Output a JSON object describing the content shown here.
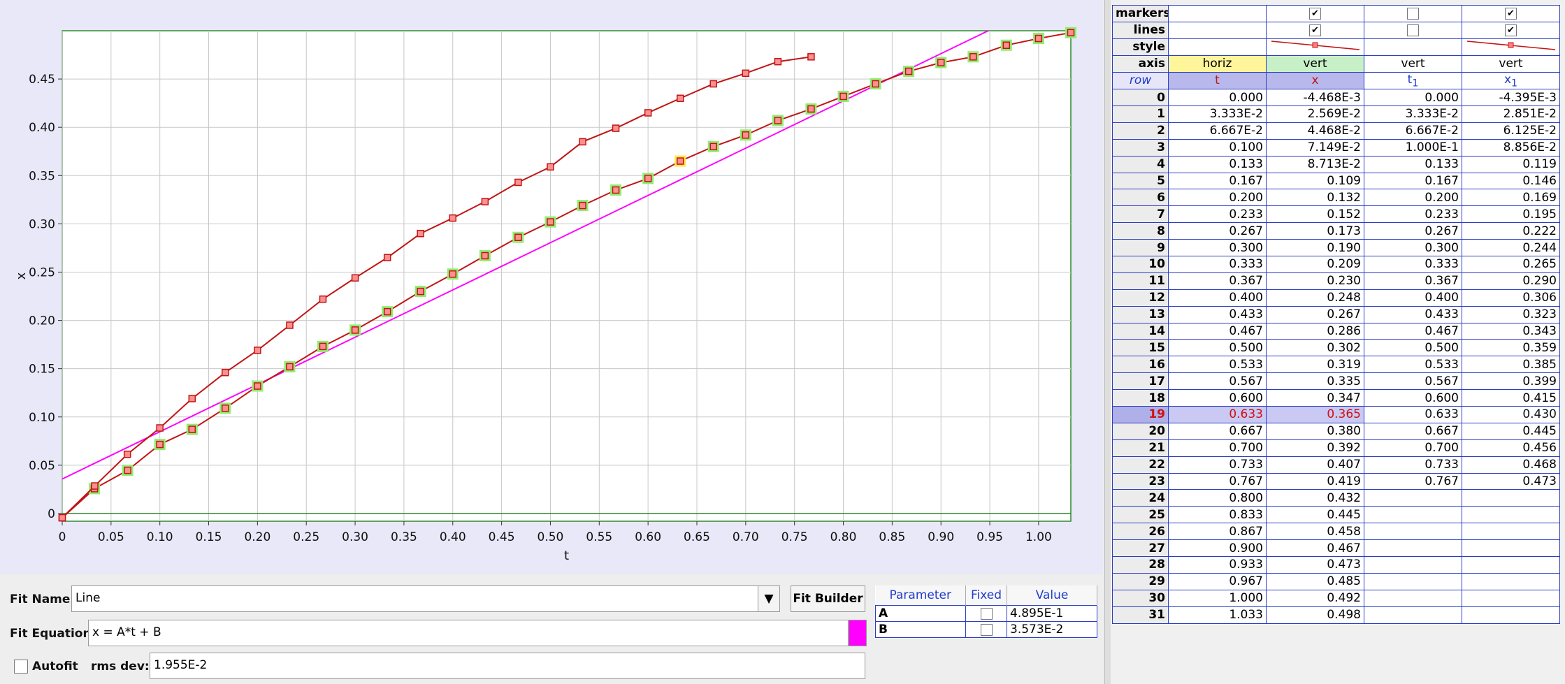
{
  "chart_data": {
    "type": "scatter",
    "xlabel": "t",
    "ylabel": "x",
    "xlim": [
      0,
      1.033
    ],
    "ylim": [
      -0.008,
      0.5
    ],
    "xticks": [
      "0",
      "0.05",
      "0.10",
      "0.15",
      "0.20",
      "0.25",
      "0.30",
      "0.35",
      "0.40",
      "0.45",
      "0.50",
      "0.55",
      "0.60",
      "0.65",
      "0.70",
      "0.75",
      "0.80",
      "0.85",
      "0.90",
      "0.95",
      "1.00"
    ],
    "yticks": [
      "0",
      "0.05",
      "0.10",
      "0.15",
      "0.20",
      "0.25",
      "0.30",
      "0.35",
      "0.40",
      "0.45"
    ],
    "grid": true,
    "series": [
      {
        "x": [
          0,
          0.033,
          0.067,
          0.1,
          0.133,
          0.167,
          0.2,
          0.233,
          0.267,
          0.3,
          0.333,
          0.367,
          0.4,
          0.433,
          0.467,
          0.5,
          0.533,
          0.567,
          0.6,
          0.633,
          0.667,
          0.7,
          0.733,
          0.767,
          0.8,
          0.833,
          0.867,
          0.9,
          0.933,
          0.967,
          1.0,
          1.033
        ],
        "values": [
          -0.0045,
          0.0257,
          0.0447,
          0.0715,
          0.0871,
          0.109,
          0.132,
          0.152,
          0.173,
          0.19,
          0.209,
          0.23,
          0.248,
          0.267,
          0.286,
          0.302,
          0.319,
          0.335,
          0.347,
          0.365,
          0.38,
          0.392,
          0.407,
          0.419,
          0.432,
          0.445,
          0.458,
          0.467,
          0.473,
          0.485,
          0.492,
          0.498
        ],
        "color": "#c01515",
        "highlight": "#90ee70"
      },
      {
        "x": [
          0,
          0.0333,
          0.0667,
          0.1,
          0.133,
          0.167,
          0.2,
          0.233,
          0.267,
          0.3,
          0.333,
          0.367,
          0.4,
          0.433,
          0.467,
          0.5,
          0.533,
          0.567,
          0.6,
          0.633,
          0.667,
          0.7,
          0.733,
          0.767
        ],
        "values": [
          -0.0044,
          0.0285,
          0.0613,
          0.0886,
          0.119,
          0.146,
          0.169,
          0.195,
          0.222,
          0.244,
          0.265,
          0.29,
          0.306,
          0.323,
          0.343,
          0.359,
          0.385,
          0.399,
          0.415,
          0.43,
          0.445,
          0.456,
          0.468,
          0.473
        ],
        "color": "#c01515"
      }
    ],
    "fit": {
      "slope": 0.4895,
      "intercept": 0.03573,
      "color": "#ff00ff"
    },
    "selected_index": 19,
    "selected_color": "#ffe84a"
  },
  "fit": {
    "name_label": "Fit Name:",
    "name_value": "Line",
    "builder_label": "Fit Builder",
    "equation_label": "Fit Equation:",
    "equation_value": "x = A*t + B",
    "swatch_color": "#ff00ff",
    "autofit_label": "Autofit",
    "rms_label": "rms dev:",
    "rms_value": "1.955E-2",
    "param_header": "Parameter",
    "fixed_header": "Fixed",
    "value_header": "Value",
    "params": [
      {
        "name": "A",
        "value": "4.895E-1"
      },
      {
        "name": "B",
        "value": "3.573E-2"
      }
    ]
  },
  "table": {
    "markers_label": "markers",
    "lines_label": "lines",
    "style_label": "style",
    "axis_label": "axis",
    "axis_values": [
      "horiz",
      "vert",
      "vert",
      "vert"
    ],
    "row_label": "row",
    "columns": [
      "t",
      "x",
      "t",
      "x"
    ],
    "subscript": "1",
    "rows": [
      [
        "0",
        "0.000",
        "-4.468E-3",
        "0.000",
        "-4.395E-3"
      ],
      [
        "1",
        "3.333E-2",
        "2.569E-2",
        "3.333E-2",
        "2.851E-2"
      ],
      [
        "2",
        "6.667E-2",
        "4.468E-2",
        "6.667E-2",
        "6.125E-2"
      ],
      [
        "3",
        "0.100",
        "7.149E-2",
        "1.000E-1",
        "8.856E-2"
      ],
      [
        "4",
        "0.133",
        "8.713E-2",
        "0.133",
        "0.119"
      ],
      [
        "5",
        "0.167",
        "0.109",
        "0.167",
        "0.146"
      ],
      [
        "6",
        "0.200",
        "0.132",
        "0.200",
        "0.169"
      ],
      [
        "7",
        "0.233",
        "0.152",
        "0.233",
        "0.195"
      ],
      [
        "8",
        "0.267",
        "0.173",
        "0.267",
        "0.222"
      ],
      [
        "9",
        "0.300",
        "0.190",
        "0.300",
        "0.244"
      ],
      [
        "10",
        "0.333",
        "0.209",
        "0.333",
        "0.265"
      ],
      [
        "11",
        "0.367",
        "0.230",
        "0.367",
        "0.290"
      ],
      [
        "12",
        "0.400",
        "0.248",
        "0.400",
        "0.306"
      ],
      [
        "13",
        "0.433",
        "0.267",
        "0.433",
        "0.323"
      ],
      [
        "14",
        "0.467",
        "0.286",
        "0.467",
        "0.343"
      ],
      [
        "15",
        "0.500",
        "0.302",
        "0.500",
        "0.359"
      ],
      [
        "16",
        "0.533",
        "0.319",
        "0.533",
        "0.385"
      ],
      [
        "17",
        "0.567",
        "0.335",
        "0.567",
        "0.399"
      ],
      [
        "18",
        "0.600",
        "0.347",
        "0.600",
        "0.415"
      ],
      [
        "19",
        "0.633",
        "0.365",
        "0.633",
        "0.430"
      ],
      [
        "20",
        "0.667",
        "0.380",
        "0.667",
        "0.445"
      ],
      [
        "21",
        "0.700",
        "0.392",
        "0.700",
        "0.456"
      ],
      [
        "22",
        "0.733",
        "0.407",
        "0.733",
        "0.468"
      ],
      [
        "23",
        "0.767",
        "0.419",
        "0.767",
        "0.473"
      ],
      [
        "24",
        "0.800",
        "0.432",
        "",
        ""
      ],
      [
        "25",
        "0.833",
        "0.445",
        "",
        ""
      ],
      [
        "26",
        "0.867",
        "0.458",
        "",
        ""
      ],
      [
        "27",
        "0.900",
        "0.467",
        "",
        ""
      ],
      [
        "28",
        "0.933",
        "0.473",
        "",
        ""
      ],
      [
        "29",
        "0.967",
        "0.485",
        "",
        ""
      ],
      [
        "30",
        "1.000",
        "0.492",
        "",
        ""
      ],
      [
        "31",
        "1.033",
        "0.498",
        "",
        ""
      ]
    ],
    "selected_row": 19,
    "colors": {
      "header_bg": "#b8b8ec",
      "horiz_bg": "#fff59a",
      "vert_bg": "#c8f0c8",
      "grid_border": "#2b3ec2"
    }
  }
}
